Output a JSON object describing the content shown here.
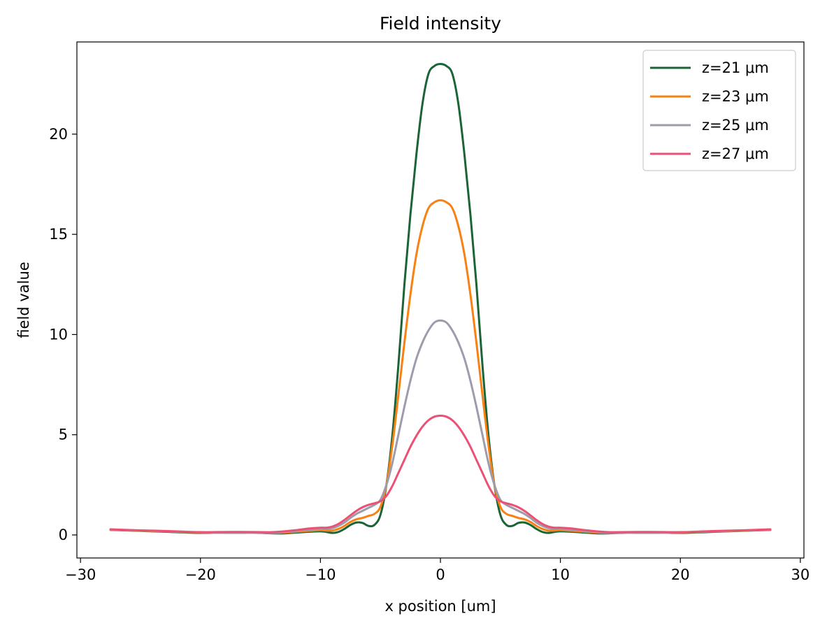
{
  "chart_data": {
    "type": "line",
    "title": "Field intensity",
    "xlabel": "x position [um]",
    "ylabel": "field value",
    "xlim": [
      -30.3,
      30.3
    ],
    "ylim": [
      -1.15,
      24.6
    ],
    "xticks": [
      -30,
      -20,
      -10,
      0,
      10,
      20,
      30
    ],
    "yticks": [
      0,
      5,
      10,
      15,
      20
    ],
    "xtick_labels": [
      "−30",
      "−20",
      "−10",
      "0",
      "10",
      "20",
      "30"
    ],
    "ytick_labels": [
      "0",
      "5",
      "10",
      "15",
      "20"
    ],
    "grid": false,
    "legend_position": "top-right",
    "x": [
      -27.5,
      -25,
      -22.5,
      -20,
      -17.5,
      -15,
      -14,
      -13,
      -12,
      -11,
      -10,
      -9.5,
      -9,
      -8.5,
      -8,
      -7.5,
      -7,
      -6.5,
      -6,
      -5.5,
      -5,
      -4.5,
      -4,
      -3.5,
      -3,
      -2.5,
      -2,
      -1.5,
      -1,
      -0.5,
      0,
      0.5,
      1,
      1.5,
      2,
      2.5,
      3,
      3.5,
      4,
      4.5,
      5,
      5.5,
      6,
      6.5,
      7,
      7.5,
      8,
      8.5,
      9,
      9.5,
      10,
      11,
      12,
      13,
      14,
      15,
      17.5,
      20,
      22.5,
      25,
      27.5
    ],
    "series": [
      {
        "name": "z=21 μm",
        "color": "#1b6436",
        "values": [
          0.25,
          0.2,
          0.15,
          0.1,
          0.12,
          0.1,
          0.08,
          0.08,
          0.12,
          0.16,
          0.18,
          0.15,
          0.1,
          0.15,
          0.3,
          0.5,
          0.62,
          0.6,
          0.45,
          0.5,
          1.0,
          2.5,
          5.0,
          8.5,
          12.5,
          16.0,
          19.0,
          21.5,
          23.0,
          23.4,
          23.5,
          23.4,
          23.0,
          21.5,
          19.0,
          16.0,
          12.5,
          8.5,
          5.0,
          2.5,
          1.0,
          0.5,
          0.45,
          0.6,
          0.62,
          0.5,
          0.3,
          0.15,
          0.1,
          0.15,
          0.18,
          0.16,
          0.12,
          0.08,
          0.08,
          0.1,
          0.12,
          0.1,
          0.15,
          0.2,
          0.25
        ]
      },
      {
        "name": "z=23 μm",
        "color": "#f98012",
        "values": [
          0.26,
          0.21,
          0.17,
          0.12,
          0.1,
          0.11,
          0.1,
          0.12,
          0.16,
          0.2,
          0.24,
          0.22,
          0.22,
          0.3,
          0.45,
          0.65,
          0.78,
          0.85,
          0.95,
          1.05,
          1.4,
          2.5,
          4.5,
          7.0,
          9.6,
          12.0,
          14.0,
          15.4,
          16.3,
          16.6,
          16.7,
          16.6,
          16.3,
          15.4,
          14.0,
          12.0,
          9.6,
          7.0,
          4.5,
          2.5,
          1.4,
          1.05,
          0.95,
          0.85,
          0.78,
          0.65,
          0.45,
          0.3,
          0.22,
          0.22,
          0.24,
          0.2,
          0.16,
          0.12,
          0.1,
          0.11,
          0.1,
          0.12,
          0.17,
          0.21,
          0.26
        ]
      },
      {
        "name": "z=25 μm",
        "color": "#9e9bac",
        "values": [
          0.27,
          0.22,
          0.18,
          0.13,
          0.12,
          0.12,
          0.12,
          0.14,
          0.2,
          0.26,
          0.3,
          0.3,
          0.34,
          0.45,
          0.62,
          0.85,
          1.05,
          1.2,
          1.35,
          1.5,
          1.75,
          2.5,
          3.6,
          5.0,
          6.4,
          7.7,
          8.8,
          9.6,
          10.2,
          10.6,
          10.7,
          10.6,
          10.2,
          9.6,
          8.8,
          7.7,
          6.4,
          5.0,
          3.6,
          2.5,
          1.75,
          1.5,
          1.35,
          1.2,
          1.05,
          0.85,
          0.62,
          0.45,
          0.34,
          0.3,
          0.3,
          0.26,
          0.2,
          0.14,
          0.12,
          0.12,
          0.12,
          0.13,
          0.18,
          0.22,
          0.27
        ]
      },
      {
        "name": "z=27 μm",
        "color": "#ec5175",
        "values": [
          0.28,
          0.23,
          0.19,
          0.14,
          0.15,
          0.14,
          0.14,
          0.18,
          0.24,
          0.32,
          0.36,
          0.36,
          0.42,
          0.55,
          0.75,
          0.98,
          1.2,
          1.38,
          1.5,
          1.58,
          1.68,
          1.95,
          2.45,
          3.1,
          3.75,
          4.4,
          4.95,
          5.4,
          5.72,
          5.9,
          5.95,
          5.9,
          5.72,
          5.4,
          4.95,
          4.4,
          3.75,
          3.1,
          2.45,
          1.95,
          1.68,
          1.58,
          1.5,
          1.38,
          1.2,
          0.98,
          0.75,
          0.55,
          0.42,
          0.36,
          0.36,
          0.32,
          0.24,
          0.18,
          0.14,
          0.14,
          0.15,
          0.14,
          0.19,
          0.23,
          0.28
        ]
      }
    ]
  }
}
